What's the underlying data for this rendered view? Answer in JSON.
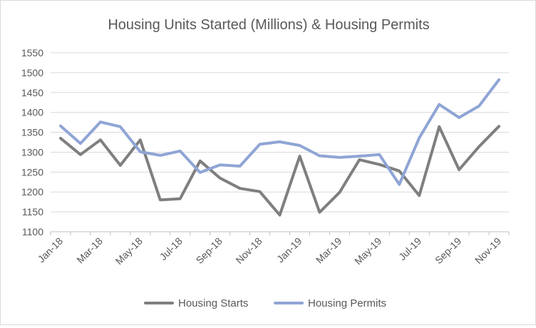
{
  "chart_data": {
    "type": "line",
    "title": "Housing Units Started (Millions) & Housing Permits",
    "xlabel": "",
    "ylabel": "",
    "ylim": [
      1100,
      1550
    ],
    "yticks": [
      1100,
      1150,
      1200,
      1250,
      1300,
      1350,
      1400,
      1450,
      1500,
      1550
    ],
    "x": [
      "Jan-18",
      "Feb-18",
      "Mar-18",
      "Apr-18",
      "May-18",
      "Jun-18",
      "Jul-18",
      "Aug-18",
      "Sep-18",
      "Oct-18",
      "Nov-18",
      "Dec-18",
      "Jan-19",
      "Feb-19",
      "Mar-19",
      "Apr-19",
      "May-19",
      "Jun-19",
      "Jul-19",
      "Aug-19",
      "Sep-19",
      "Oct-19",
      "Nov-19"
    ],
    "xtick_labels": [
      "Jan-18",
      "",
      "Mar-18",
      "",
      "May-18",
      "",
      "Jul-18",
      "",
      "Sep-18",
      "",
      "Nov-18",
      "",
      "Jan-19",
      "",
      "Mar-19",
      "",
      "May-19",
      "",
      "Jul-19",
      "",
      "Sep-19",
      "",
      "Nov-19"
    ],
    "grid": true,
    "legend_position": "bottom",
    "series": [
      {
        "name": "Housing Starts",
        "color": "#7f7f7f",
        "values": [
          1335,
          1294,
          1331,
          1267,
          1331,
          1180,
          1183,
          1278,
          1235,
          1209,
          1201,
          1142,
          1290,
          1149,
          1199,
          1281,
          1269,
          1253,
          1191,
          1364,
          1256,
          1314,
          1365
        ]
      },
      {
        "name": "Housing Permits",
        "color": "#8fa5d5",
        "values": [
          1366,
          1322,
          1376,
          1364,
          1301,
          1292,
          1303,
          1249,
          1268,
          1265,
          1320,
          1326,
          1317,
          1291,
          1287,
          1290,
          1294,
          1219,
          1336,
          1420,
          1387,
          1416,
          1482
        ]
      }
    ]
  }
}
